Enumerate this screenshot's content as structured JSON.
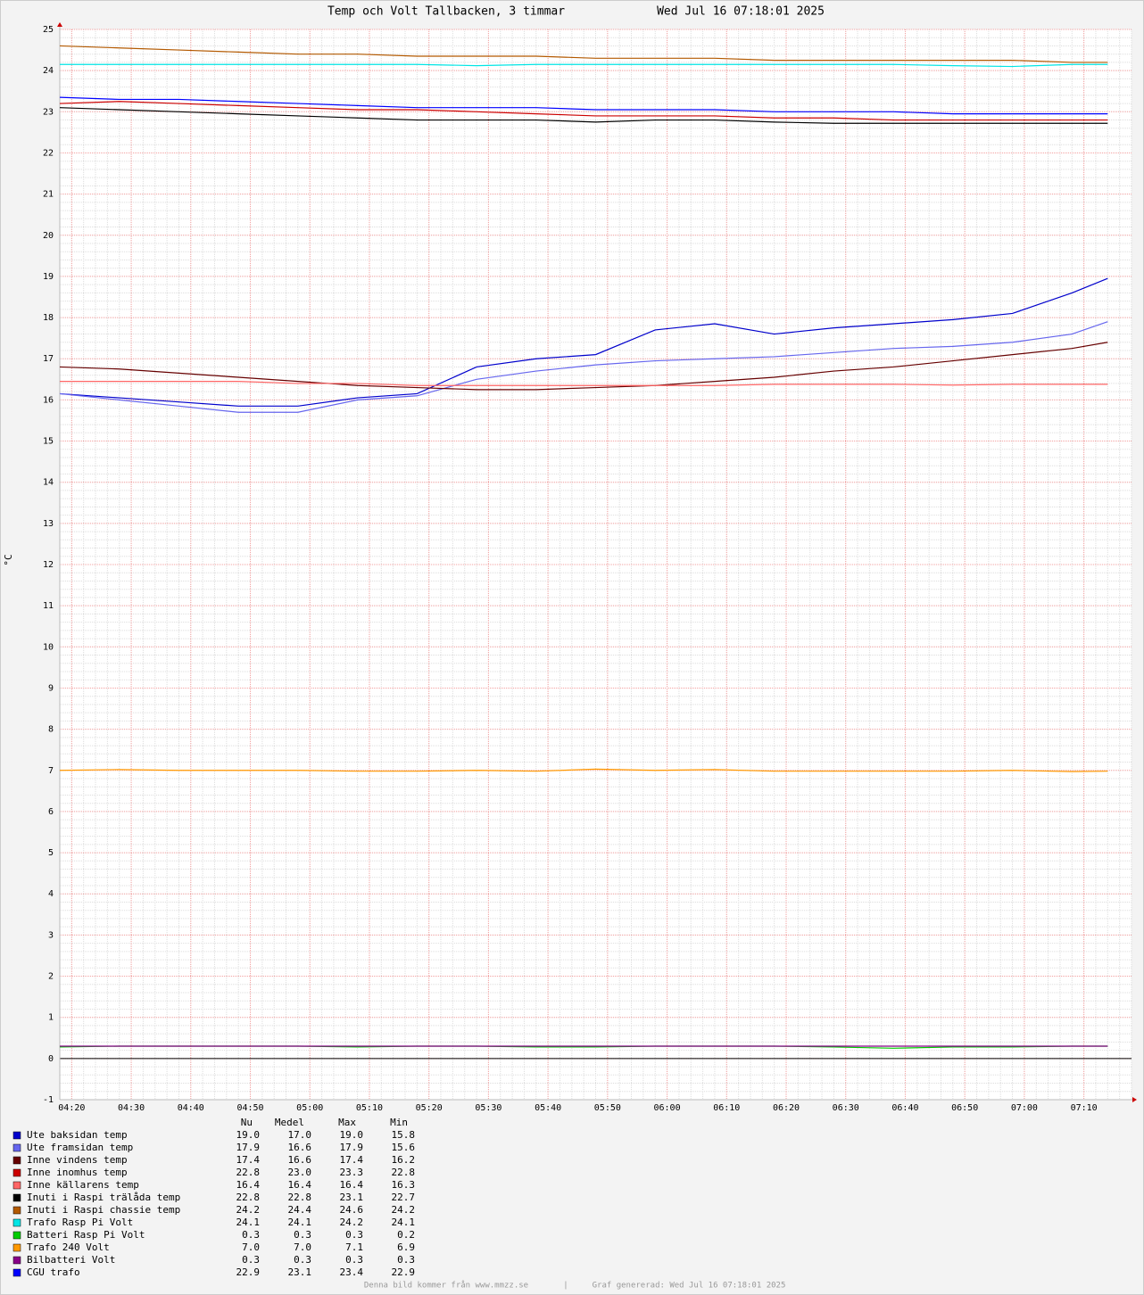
{
  "chart_data": {
    "type": "line",
    "title": "Temp och Volt Tallbacken, 3 timmar",
    "subtitle": "Wed Jul 16 07:18:01 2025",
    "y_label": "°C",
    "x": [
      "04:18",
      "04:28",
      "04:38",
      "04:48",
      "04:58",
      "05:08",
      "05:18",
      "05:28",
      "05:38",
      "05:48",
      "05:58",
      "06:08",
      "06:18",
      "06:28",
      "06:38",
      "06:48",
      "06:58",
      "07:08",
      "07:14"
    ],
    "xlim": [
      "04:18",
      "07:18"
    ],
    "xticks": [
      "04:20",
      "04:30",
      "04:40",
      "04:50",
      "05:00",
      "05:10",
      "05:20",
      "05:30",
      "05:40",
      "05:50",
      "06:00",
      "06:10",
      "06:20",
      "06:30",
      "06:40",
      "06:50",
      "07:00",
      "07:10"
    ],
    "ylim": [
      -1,
      25
    ],
    "yticks": [
      -1,
      0,
      1,
      2,
      3,
      4,
      5,
      6,
      7,
      8,
      9,
      10,
      11,
      12,
      13,
      14,
      15,
      16,
      17,
      18,
      19,
      20,
      21,
      22,
      23,
      24,
      25
    ],
    "grid": true,
    "legend_columns": [
      "Nu",
      "Medel",
      "Max",
      "Min"
    ],
    "series": [
      {
        "name": "Ute baksidan temp",
        "color": "#0000cc",
        "values": [
          16.15,
          16.05,
          15.95,
          15.85,
          15.85,
          16.05,
          16.15,
          16.8,
          17.0,
          17.1,
          17.7,
          17.85,
          17.6,
          17.75,
          17.85,
          17.95,
          18.1,
          18.6,
          18.95
        ],
        "stats": [
          "19.0",
          "17.0",
          "19.0",
          "15.8"
        ]
      },
      {
        "name": "Ute framsidan temp",
        "color": "#6666ee",
        "values": [
          16.15,
          16.0,
          15.85,
          15.7,
          15.7,
          16.0,
          16.1,
          16.5,
          16.7,
          16.85,
          16.95,
          17.0,
          17.05,
          17.15,
          17.25,
          17.3,
          17.4,
          17.6,
          17.9
        ],
        "stats": [
          "17.9",
          "16.6",
          "17.9",
          "15.6"
        ]
      },
      {
        "name": "Inne vindens temp",
        "color": "#660000",
        "values": [
          16.8,
          16.75,
          16.65,
          16.55,
          16.45,
          16.35,
          16.3,
          16.25,
          16.25,
          16.3,
          16.35,
          16.45,
          16.55,
          16.7,
          16.8,
          16.95,
          17.1,
          17.25,
          17.4
        ],
        "stats": [
          "17.4",
          "16.6",
          "17.4",
          "16.2"
        ]
      },
      {
        "name": "Inne inomhus temp",
        "color": "#cc0000",
        "values": [
          23.2,
          23.25,
          23.2,
          23.15,
          23.1,
          23.05,
          23.05,
          23.0,
          22.95,
          22.9,
          22.9,
          22.9,
          22.85,
          22.85,
          22.8,
          22.8,
          22.8,
          22.8,
          22.8
        ],
        "stats": [
          "22.8",
          "23.0",
          "23.3",
          "22.8"
        ]
      },
      {
        "name": "Inne källarens temp",
        "color": "#ff6666",
        "values": [
          16.45,
          16.45,
          16.45,
          16.45,
          16.4,
          16.4,
          16.35,
          16.35,
          16.35,
          16.35,
          16.35,
          16.35,
          16.38,
          16.38,
          16.38,
          16.36,
          16.38,
          16.38,
          16.38
        ],
        "stats": [
          "16.4",
          "16.4",
          "16.4",
          "16.3"
        ]
      },
      {
        "name": "Inuti i Raspi trälåda temp",
        "color": "#000000",
        "values": [
          23.1,
          23.05,
          23.0,
          22.95,
          22.9,
          22.85,
          22.8,
          22.8,
          22.8,
          22.75,
          22.8,
          22.8,
          22.75,
          22.72,
          22.72,
          22.72,
          22.72,
          22.72,
          22.72
        ],
        "stats": [
          "22.8",
          "22.8",
          "23.1",
          "22.7"
        ]
      },
      {
        "name": "Inuti i Raspi chassie temp",
        "color": "#b35900",
        "values": [
          24.6,
          24.55,
          24.5,
          24.45,
          24.4,
          24.4,
          24.35,
          24.35,
          24.35,
          24.3,
          24.3,
          24.3,
          24.25,
          24.25,
          24.25,
          24.25,
          24.25,
          24.2,
          24.2
        ],
        "stats": [
          "24.2",
          "24.4",
          "24.6",
          "24.2"
        ]
      },
      {
        "name": "Trafo Rasp Pi Volt",
        "color": "#00e5e5",
        "values": [
          24.15,
          24.15,
          24.15,
          24.15,
          24.15,
          24.15,
          24.15,
          24.12,
          24.15,
          24.15,
          24.15,
          24.15,
          24.15,
          24.15,
          24.15,
          24.12,
          24.1,
          24.15,
          24.15
        ],
        "stats": [
          "24.1",
          "24.1",
          "24.2",
          "24.1"
        ]
      },
      {
        "name": "Batteri Rasp Pi Volt",
        "color": "#00cc00",
        "values": [
          0.28,
          0.3,
          0.3,
          0.3,
          0.3,
          0.28,
          0.3,
          0.3,
          0.28,
          0.28,
          0.3,
          0.3,
          0.3,
          0.28,
          0.25,
          0.28,
          0.28,
          0.3,
          0.3
        ],
        "stats": [
          "0.3",
          "0.3",
          "0.3",
          "0.2"
        ]
      },
      {
        "name": "Trafo 240 Volt",
        "color": "#ff9900",
        "values": [
          7.0,
          7.02,
          7.0,
          7.0,
          7.0,
          6.98,
          6.98,
          7.0,
          6.98,
          7.03,
          7.0,
          7.02,
          6.98,
          6.98,
          6.98,
          6.98,
          7.0,
          6.97,
          6.98
        ],
        "stats": [
          "7.0",
          "7.0",
          "7.1",
          "6.9"
        ]
      },
      {
        "name": "Bilbatteri Volt",
        "color": "#880088",
        "values": [
          0.3,
          0.3,
          0.3,
          0.3,
          0.3,
          0.3,
          0.3,
          0.3,
          0.3,
          0.3,
          0.3,
          0.3,
          0.3,
          0.3,
          0.3,
          0.3,
          0.3,
          0.3,
          0.3
        ],
        "stats": [
          "0.3",
          "0.3",
          "0.3",
          "0.3"
        ]
      },
      {
        "name": "CGU trafo",
        "color": "#0000ff",
        "values": [
          23.35,
          23.3,
          23.3,
          23.25,
          23.2,
          23.15,
          23.1,
          23.1,
          23.1,
          23.05,
          23.05,
          23.05,
          23.0,
          23.0,
          23.0,
          22.95,
          22.95,
          22.95,
          22.95
        ],
        "stats": [
          "22.9",
          "23.1",
          "23.4",
          "22.9"
        ]
      }
    ]
  },
  "footer": {
    "source": "Denna bild kommer från www.mmzz.se",
    "separator": "|",
    "generated": "Graf genererad: Wed Jul 16 07:18:01 2025"
  }
}
